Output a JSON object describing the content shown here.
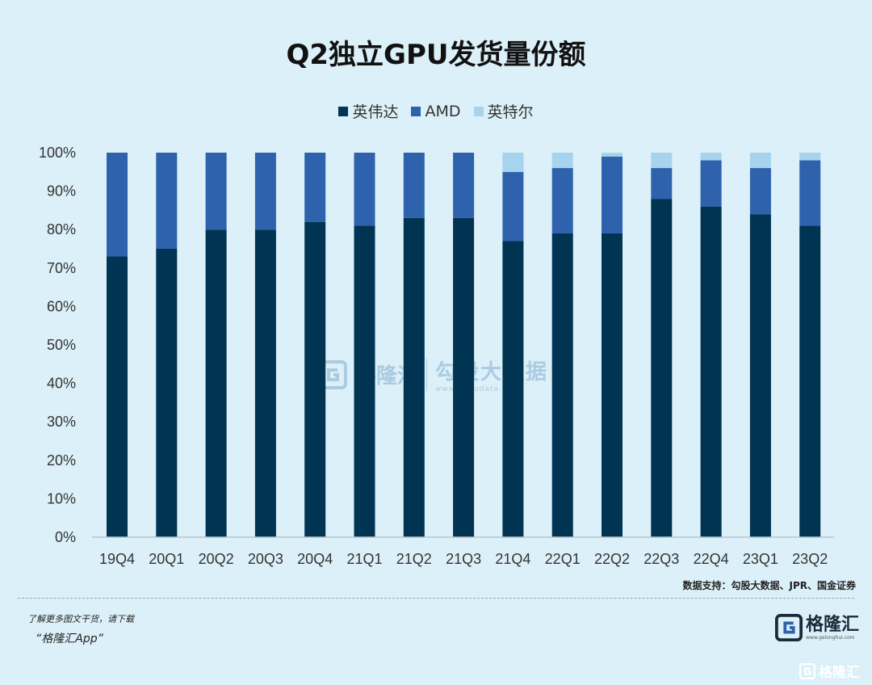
{
  "chart_data": {
    "type": "bar",
    "stacked": true,
    "title": "Q2独立GPU发货量份额",
    "categories": [
      "19Q4",
      "20Q1",
      "20Q2",
      "20Q3",
      "20Q4",
      "21Q1",
      "21Q2",
      "21Q3",
      "21Q4",
      "22Q1",
      "22Q2",
      "22Q3",
      "22Q4",
      "23Q1",
      "23Q2"
    ],
    "series": [
      {
        "name": "英伟达",
        "color": "#003452",
        "values": [
          73,
          75,
          80,
          80,
          82,
          81,
          83,
          83,
          77,
          79,
          79,
          88,
          86,
          84,
          81
        ]
      },
      {
        "name": "AMD",
        "color": "#2e62ad",
        "values": [
          27,
          25,
          20,
          20,
          18,
          19,
          17,
          17,
          18,
          17,
          20,
          8,
          12,
          12,
          17
        ]
      },
      {
        "name": "英特尔",
        "color": "#a6d3ee",
        "values": [
          0,
          0,
          0,
          0,
          0,
          0,
          0,
          0,
          5,
          4,
          1,
          4,
          2,
          4,
          2
        ]
      }
    ],
    "y_ticks": [
      "0%",
      "10%",
      "20%",
      "30%",
      "40%",
      "50%",
      "60%",
      "70%",
      "80%",
      "90%",
      "100%"
    ],
    "ylim": [
      0,
      100
    ],
    "legend_position": "top-center",
    "grid": false
  },
  "source": "数据支持：勾股大数据、JPR、国金证券",
  "promo": {
    "line1": "了解更多图文干货，请下载",
    "line2": "“格隆汇App”"
  },
  "brand": {
    "name": "格隆汇",
    "url": "www.gelonghui.com"
  },
  "watermark": {
    "name": "格隆汇",
    "sub": "勾股大数据",
    "url": "www.gogudata.com"
  },
  "corner": {
    "text": "格隆汇"
  },
  "colors": {
    "background": "#dcf0f9",
    "nvidia": "#003452",
    "amd": "#2e62ad",
    "intel": "#a6d3ee"
  }
}
